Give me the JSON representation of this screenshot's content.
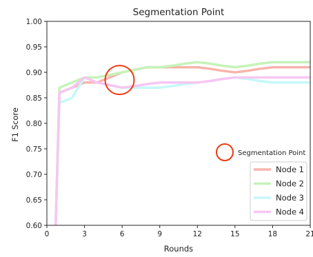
{
  "chart_data": {
    "type": "line",
    "title": "Segmentation Point",
    "xlabel": "Rounds",
    "ylabel": "F1 Score",
    "xlim": [
      0,
      21
    ],
    "ylim": [
      0.6,
      1.0
    ],
    "x_ticks": [
      "0",
      "3",
      "6",
      "9",
      "12",
      "15",
      "18",
      "21"
    ],
    "y_ticks": [
      "0.60",
      "0.65",
      "0.70",
      "0.75",
      "0.80",
      "0.85",
      "0.90",
      "0.95",
      "1.00"
    ],
    "grid": false,
    "legend_position": "bottom-right",
    "series": [
      {
        "name": "Node 1",
        "color": "#f7b4ac",
        "x": [
          0.7,
          1,
          2,
          3,
          4,
          5,
          6,
          7,
          8,
          9,
          10,
          11,
          12,
          13,
          14,
          15,
          16,
          17,
          18,
          19,
          20,
          21
        ],
        "y": [
          0.6,
          0.86,
          0.87,
          0.88,
          0.88,
          0.89,
          0.9,
          0.905,
          0.91,
          0.91,
          0.91,
          0.91,
          0.91,
          0.907,
          0.903,
          0.9,
          0.903,
          0.907,
          0.91,
          0.91,
          0.91,
          0.91
        ]
      },
      {
        "name": "Node 2",
        "color": "#c5f3b8",
        "x": [
          0.7,
          1,
          2,
          3,
          4,
          5,
          6,
          7,
          8,
          9,
          10,
          11,
          12,
          13,
          14,
          15,
          16,
          17,
          18,
          19,
          20,
          21
        ],
        "y": [
          0.6,
          0.87,
          0.88,
          0.89,
          0.89,
          0.895,
          0.9,
          0.905,
          0.91,
          0.91,
          0.913,
          0.917,
          0.92,
          0.917,
          0.913,
          0.91,
          0.913,
          0.917,
          0.92,
          0.92,
          0.92,
          0.92
        ]
      },
      {
        "name": "Node 3",
        "color": "#c6f7f9",
        "x": [
          0.7,
          1,
          2,
          3,
          4,
          5,
          6,
          7,
          8,
          9,
          10,
          11,
          12,
          13,
          14,
          15,
          16,
          17,
          18,
          19,
          20,
          21
        ],
        "y": [
          0.6,
          0.84,
          0.85,
          0.89,
          0.88,
          0.875,
          0.87,
          0.87,
          0.87,
          0.87,
          0.873,
          0.877,
          0.88,
          0.883,
          0.887,
          0.89,
          0.887,
          0.883,
          0.88,
          0.88,
          0.88,
          0.88
        ]
      },
      {
        "name": "Node 4",
        "color": "#f7c6f2",
        "x": [
          0.7,
          1,
          2,
          3,
          4,
          5,
          6,
          7,
          8,
          9,
          10,
          11,
          12,
          13,
          14,
          15,
          16,
          17,
          18,
          19,
          20,
          21
        ],
        "y": [
          0.6,
          0.86,
          0.87,
          0.89,
          0.88,
          0.875,
          0.87,
          0.873,
          0.877,
          0.88,
          0.88,
          0.88,
          0.88,
          0.883,
          0.887,
          0.89,
          0.89,
          0.89,
          0.89,
          0.89,
          0.89,
          0.89
        ]
      }
    ],
    "annotations": [
      {
        "label": "",
        "marker": "circle",
        "color": "#ee3a10",
        "x": 5.8,
        "y": 0.885
      }
    ],
    "legend_extra": {
      "label": "Segmentation Point",
      "marker": "circle",
      "color": "#ee3a10"
    }
  }
}
